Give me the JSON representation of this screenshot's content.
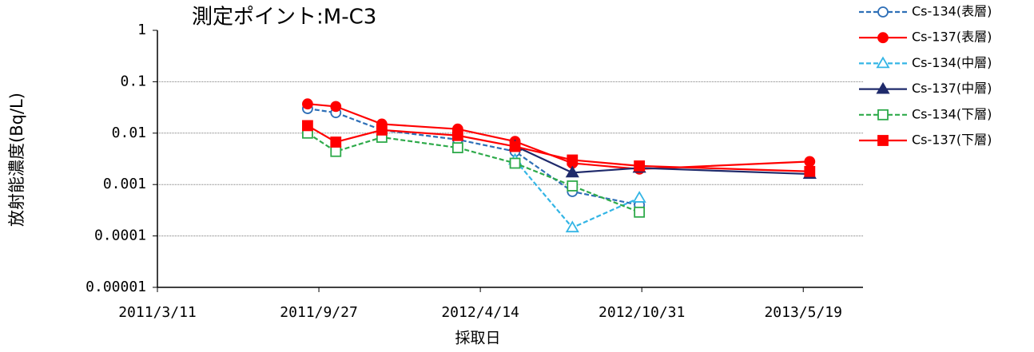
{
  "chart_data": {
    "type": "line",
    "title": "測定ポイント:M-C3",
    "y_label": "放射能濃度(Bq/L)",
    "x_label": "採取日",
    "x": [
      "2011/9/13",
      "2011/10/18",
      "2011/12/14",
      "2012/3/17",
      "2012/5/27",
      "2012/8/6",
      "2012/10/28",
      "2013/5/27"
    ],
    "series": [
      {
        "name": "Cs-134(表層)",
        "color": "#2e6fb7",
        "dashed": true,
        "marker": "circle",
        "filled": false,
        "values": [
          0.03,
          0.025,
          0.0115,
          0.0075,
          0.0044,
          0.00073,
          0.0004,
          null
        ]
      },
      {
        "name": "Cs-137(表層)",
        "color": "#ff0000",
        "dashed": false,
        "marker": "circle",
        "filled": true,
        "values": [
          0.037,
          0.033,
          0.015,
          0.012,
          0.0069,
          0.0026,
          0.002,
          0.0028
        ]
      },
      {
        "name": "Cs-134(中層)",
        "color": "#33b5e5",
        "dashed": true,
        "marker": "triangle",
        "filled": false,
        "values": [
          null,
          null,
          null,
          null,
          0.003,
          0.000145,
          0.00055,
          null
        ]
      },
      {
        "name": "Cs-137(中層)",
        "color": "#1f2a6b",
        "dashed": false,
        "marker": "triangle",
        "filled": true,
        "values": [
          null,
          null,
          null,
          null,
          0.0056,
          0.0017,
          0.0021,
          0.0016
        ]
      },
      {
        "name": "Cs-134(下層)",
        "color": "#2eaa4a",
        "dashed": true,
        "marker": "square",
        "filled": false,
        "values": [
          0.01,
          0.0044,
          0.0083,
          0.0052,
          0.0026,
          0.00094,
          0.00029,
          null
        ]
      },
      {
        "name": "Cs-137(下層)",
        "color": "#ff0000",
        "dashed": false,
        "marker": "square",
        "filled": true,
        "values": [
          0.014,
          0.0067,
          0.0115,
          0.009,
          0.0055,
          0.003,
          0.0023,
          0.0018
        ]
      }
    ],
    "xlim": [
      "2011/3/11",
      "2013/8/1"
    ],
    "xticks": [
      "2011/3/11",
      "2011/9/27",
      "2012/4/14",
      "2012/10/31",
      "2013/5/19"
    ],
    "ylim": [
      1e-05,
      1
    ],
    "yticks": [
      1e-05,
      0.0001,
      0.001,
      0.01,
      0.1,
      1
    ],
    "log_y": true,
    "grid": true,
    "legend": "right"
  }
}
